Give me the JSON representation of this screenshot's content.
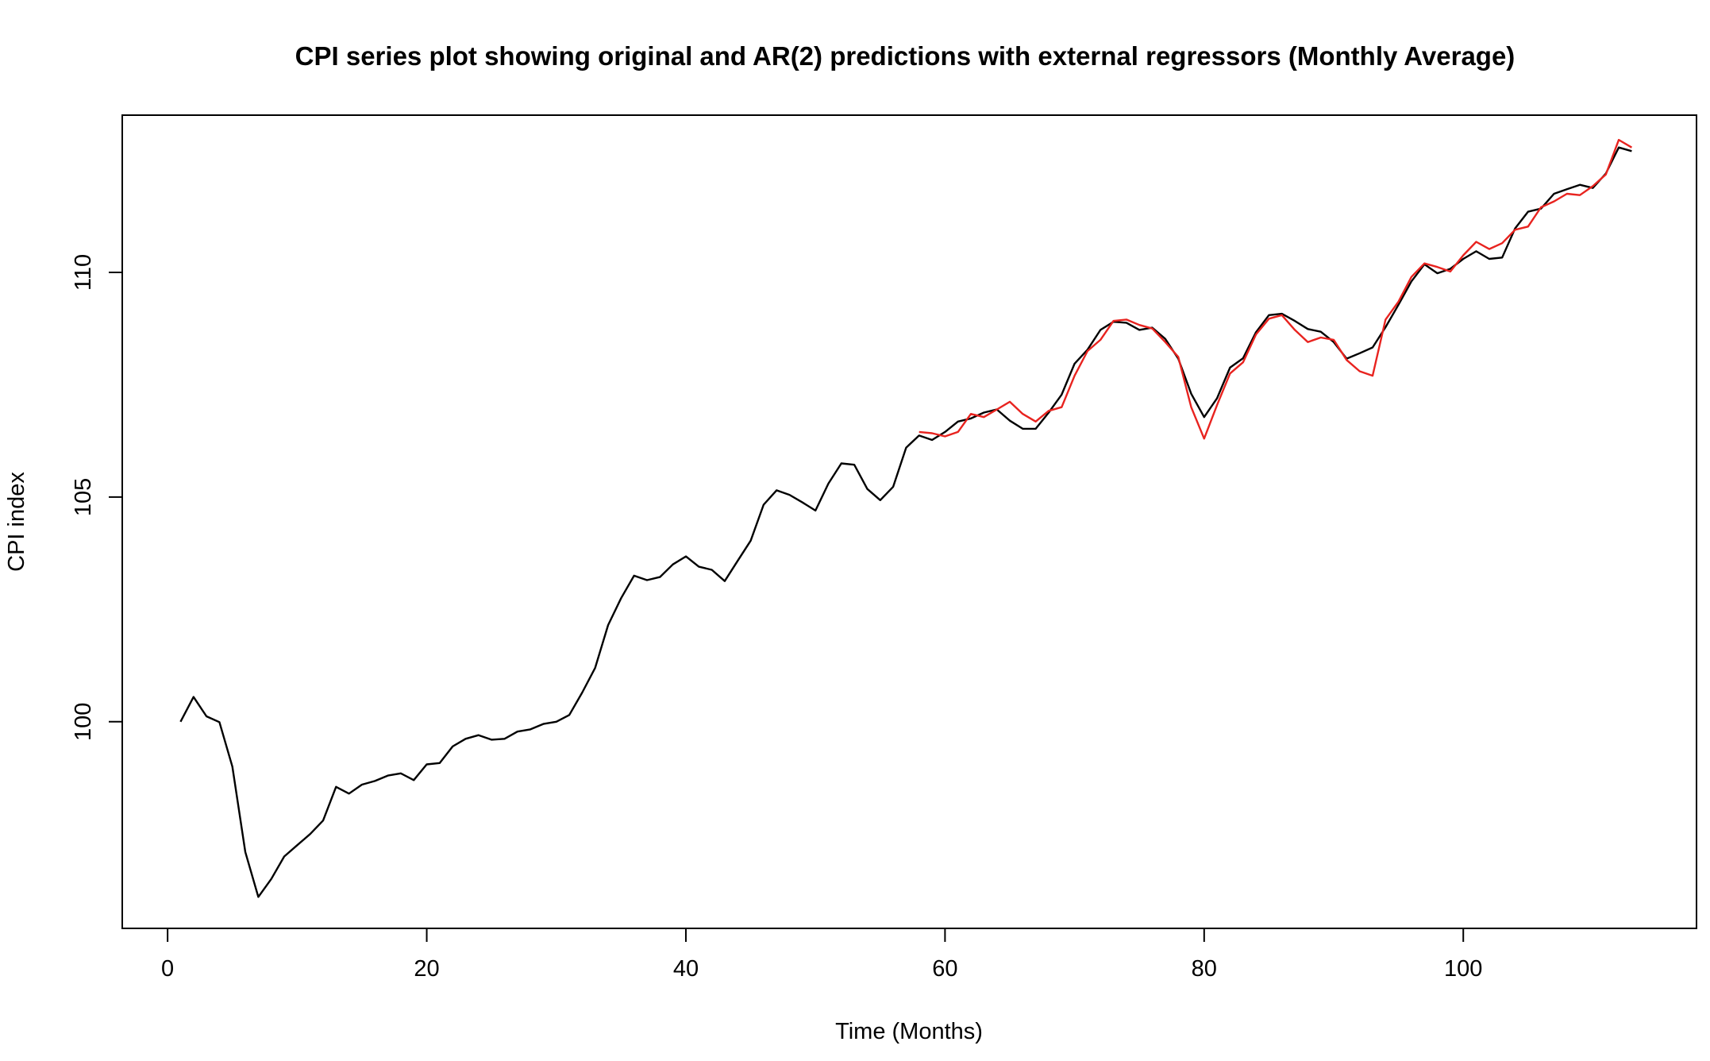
{
  "chart_data": {
    "type": "line",
    "title": "CPI series plot showing original and AR(2) predictions with external regressors (Monthly Average)",
    "xlabel": "Time (Months)",
    "ylabel": "CPI index",
    "xlim": [
      -3.5,
      118
    ],
    "ylim": [
      95.4,
      113.5
    ],
    "xticks": [
      0,
      20,
      40,
      60,
      80,
      100
    ],
    "yticks": [
      100,
      105,
      110
    ],
    "grid": false,
    "series": [
      {
        "color": "#000000",
        "x": [
          1,
          2,
          3,
          4,
          5,
          6,
          7,
          8,
          9,
          10,
          11,
          12,
          13,
          14,
          15,
          16,
          17,
          18,
          19,
          20,
          21,
          22,
          23,
          24,
          25,
          26,
          27,
          28,
          29,
          30,
          31,
          32,
          33,
          34,
          35,
          36,
          37,
          38,
          39,
          40,
          41,
          42,
          43,
          44,
          45,
          46,
          47,
          48,
          49,
          50,
          51,
          52,
          53,
          54,
          55,
          56,
          57,
          58,
          59,
          60,
          61,
          62,
          63,
          64,
          65,
          66,
          67,
          68,
          69,
          70,
          71,
          72,
          73,
          74,
          75,
          76,
          77,
          78,
          79,
          80,
          81,
          82,
          83,
          84,
          85,
          86,
          87,
          88,
          89,
          90,
          91,
          92,
          93,
          94,
          95,
          96,
          97,
          98,
          99,
          100,
          101,
          102,
          103,
          104,
          105,
          106,
          107,
          108,
          109,
          110,
          111,
          112,
          113
        ],
        "y": [
          100.0,
          100.55,
          100.12,
          99.99,
          99.0,
          97.1,
          96.1,
          96.5,
          97.0,
          97.25,
          97.5,
          97.8,
          98.55,
          98.4,
          98.6,
          98.68,
          98.8,
          98.85,
          98.7,
          99.05,
          99.08,
          99.45,
          99.62,
          99.7,
          99.6,
          99.62,
          99.78,
          99.83,
          99.95,
          100.0,
          100.15,
          100.65,
          101.2,
          102.15,
          102.75,
          103.25,
          103.15,
          103.22,
          103.5,
          103.68,
          103.45,
          103.38,
          103.13,
          103.58,
          104.03,
          104.83,
          105.15,
          105.05,
          104.88,
          104.7,
          105.3,
          105.75,
          105.72,
          105.18,
          104.93,
          105.23,
          106.1,
          106.37,
          106.27,
          106.45,
          106.68,
          106.75,
          106.88,
          106.95,
          106.7,
          106.52,
          106.52,
          106.88,
          107.28,
          107.97,
          108.28,
          108.72,
          108.9,
          108.88,
          108.72,
          108.77,
          108.52,
          108.08,
          107.3,
          106.78,
          107.2,
          107.88,
          108.09,
          108.67,
          109.05,
          109.08,
          108.92,
          108.74,
          108.68,
          108.45,
          108.08,
          108.2,
          108.33,
          108.78,
          109.28,
          109.8,
          110.18,
          109.98,
          110.08,
          110.3,
          110.47,
          110.3,
          110.33,
          110.98,
          111.35,
          111.42,
          111.75,
          111.85,
          111.95,
          111.88,
          112.2,
          112.78,
          112.7
        ]
      },
      {
        "color": "#e8231f",
        "x": [
          58,
          59,
          60,
          61,
          62,
          63,
          64,
          65,
          66,
          67,
          68,
          69,
          70,
          71,
          72,
          73,
          74,
          75,
          76,
          77,
          78,
          79,
          80,
          81,
          82,
          83,
          84,
          85,
          86,
          87,
          88,
          89,
          90,
          91,
          92,
          93,
          94,
          95,
          96,
          97,
          98,
          99,
          100,
          101,
          102,
          103,
          104,
          105,
          106,
          107,
          108,
          109,
          110,
          111,
          112,
          113
        ],
        "y": [
          106.45,
          106.42,
          106.35,
          106.45,
          106.85,
          106.78,
          106.95,
          107.12,
          106.85,
          106.68,
          106.92,
          107.0,
          107.7,
          108.25,
          108.5,
          108.92,
          108.95,
          108.83,
          108.75,
          108.45,
          108.12,
          107.0,
          106.3,
          107.05,
          107.75,
          108.0,
          108.62,
          108.97,
          109.05,
          108.72,
          108.45,
          108.55,
          108.5,
          108.05,
          107.8,
          107.7,
          108.95,
          109.35,
          109.9,
          110.2,
          110.12,
          110.02,
          110.38,
          110.68,
          110.52,
          110.65,
          110.95,
          111.02,
          111.45,
          111.58,
          111.75,
          111.72,
          111.92,
          112.18,
          112.95,
          112.78
        ]
      }
    ]
  }
}
